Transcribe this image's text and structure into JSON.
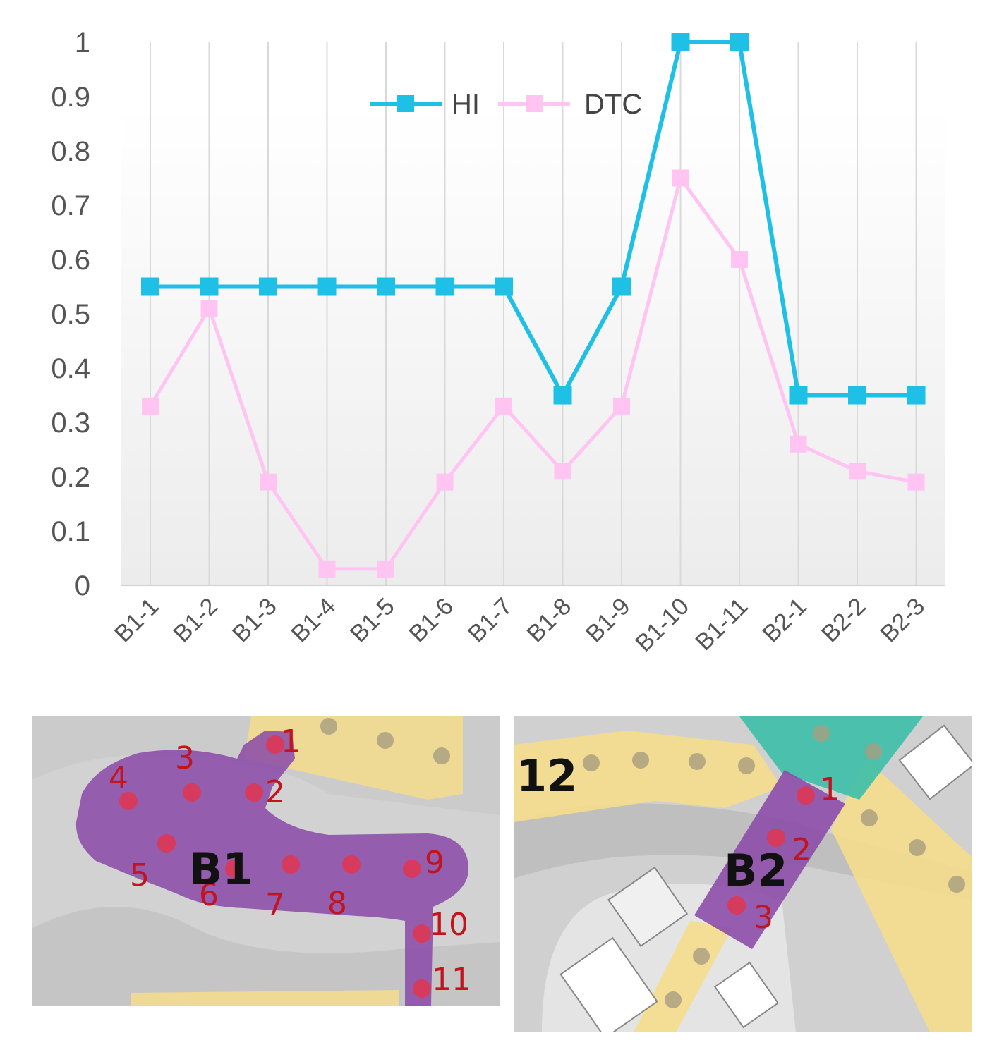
{
  "chart_data": {
    "type": "line",
    "categories": [
      "B1-1",
      "B1-2",
      "B1-3",
      "B1-4",
      "B1-5",
      "B1-6",
      "B1-7",
      "B1-8",
      "B1-9",
      "B1-10",
      "B1-11",
      "B2-1",
      "B2-2",
      "B2-3"
    ],
    "series": [
      {
        "name": "HI",
        "color": "#1ec0e6",
        "values": [
          0.55,
          0.55,
          0.55,
          0.55,
          0.55,
          0.55,
          0.55,
          0.35,
          0.55,
          1.0,
          1.0,
          0.35,
          0.35,
          0.35
        ]
      },
      {
        "name": "DTC",
        "color": "#ffc4f2",
        "values": [
          0.33,
          0.51,
          0.19,
          0.03,
          0.03,
          0.19,
          0.33,
          0.21,
          0.33,
          0.75,
          0.6,
          0.26,
          0.21,
          0.19
        ]
      }
    ],
    "yticks": [
      "0",
      "0.1",
      "0.2",
      "0.3",
      "0.4",
      "0.5",
      "0.6",
      "0.7",
      "0.8",
      "0.9",
      "1"
    ],
    "ylim": [
      0,
      1
    ],
    "grid": "vertical",
    "legend": "top-center"
  },
  "maps": {
    "left": {
      "zone_label": "B1",
      "point_labels": [
        "1",
        "2",
        "3",
        "4",
        "5",
        "6",
        "7",
        "8",
        "9",
        "10",
        "11"
      ]
    },
    "right": {
      "zone_label": "B2",
      "area_label": "12",
      "point_labels": [
        "1",
        "2",
        "3"
      ]
    }
  }
}
